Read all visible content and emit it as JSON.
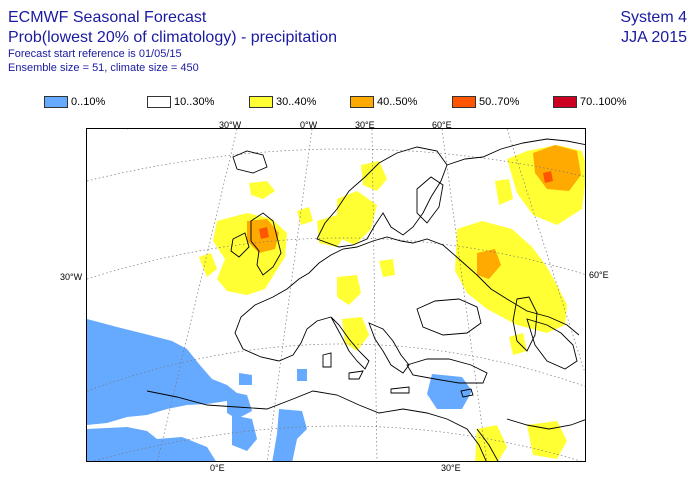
{
  "header": {
    "title": "ECMWF Seasonal Forecast",
    "subtitle": "Prob(lowest 20% of climatology) - precipitation",
    "start_ref": "Forecast start reference is 01/05/15",
    "ensemble": "Ensemble size = 51, climate size = 450",
    "system": "System 4",
    "season": "JJA 2015"
  },
  "legend": [
    {
      "label": "0..10%",
      "color": "#66aaff"
    },
    {
      "label": "10..30%",
      "color": "#ffffff"
    },
    {
      "label": "30..40%",
      "color": "#ffff33"
    },
    {
      "label": "40..50%",
      "color": "#ffaa00"
    },
    {
      "label": "50..70%",
      "color": "#ff5500"
    },
    {
      "label": "70..100%",
      "color": "#cc0022"
    }
  ],
  "map_labels": {
    "top_30w": "30°W",
    "top_0w": "0°W",
    "top_30e": "30°E",
    "top_60e": "60°E",
    "left_30w": "30°W",
    "right_60e": "60°E",
    "bottom_0e": "0°E",
    "bottom_30e": "30°E"
  }
}
